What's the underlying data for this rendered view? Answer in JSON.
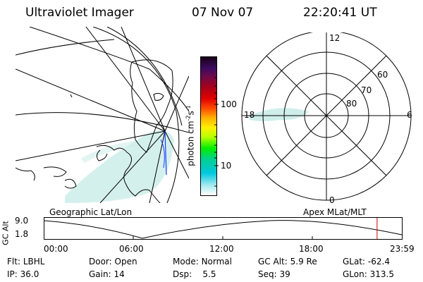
{
  "header": {
    "title": "Ultraviolet Imager",
    "date": "07 Nov 07",
    "time": "22:20:41 UT"
  },
  "colorbar": {
    "label": "photon cm",
    "exp1": "-2",
    "mid": "s",
    "exp2": "-1",
    "ticks": [
      "100",
      "10"
    ]
  },
  "polar_plot": {
    "labels": {
      "top": "12",
      "bottom": "0",
      "left": "18",
      "right": "6",
      "lat60": "60",
      "lat70": "70",
      "lat80": "80"
    }
  },
  "projection_labels": {
    "left": "Geographic Lat/Lon",
    "right": "Apex MLat/MLT"
  },
  "altitude_plot": {
    "ylabel": "GC Alt",
    "yticks": [
      "9.0",
      "1.8"
    ],
    "xticks": [
      "00:00",
      "06:00",
      "12:00",
      "18:00",
      "23:59"
    ],
    "current_time_marker_hours": 22.34,
    "marker_color": "#d00000"
  },
  "status": {
    "row1": [
      {
        "label": "Flt:",
        "value": "LBHL"
      },
      {
        "label": "Door:",
        "value": "Open"
      },
      {
        "label": "Mode:",
        "value": "Normal"
      },
      {
        "label": "GC Alt:",
        "value": "5.9 Re"
      },
      {
        "label": "GLat:",
        "value": "-62.4"
      }
    ],
    "row2": [
      {
        "label": "IP:",
        "value": "36.0"
      },
      {
        "label": "Gain:",
        "value": "14"
      },
      {
        "label": "Dsp:",
        "value": "5.5"
      },
      {
        "label": "Seq:",
        "value": "39"
      },
      {
        "label": "GLon:",
        "value": "313.5"
      }
    ]
  },
  "colors": {
    "aurora": "#bfe6e3",
    "line": "#000000",
    "orbit_track": "#1a3cff"
  }
}
